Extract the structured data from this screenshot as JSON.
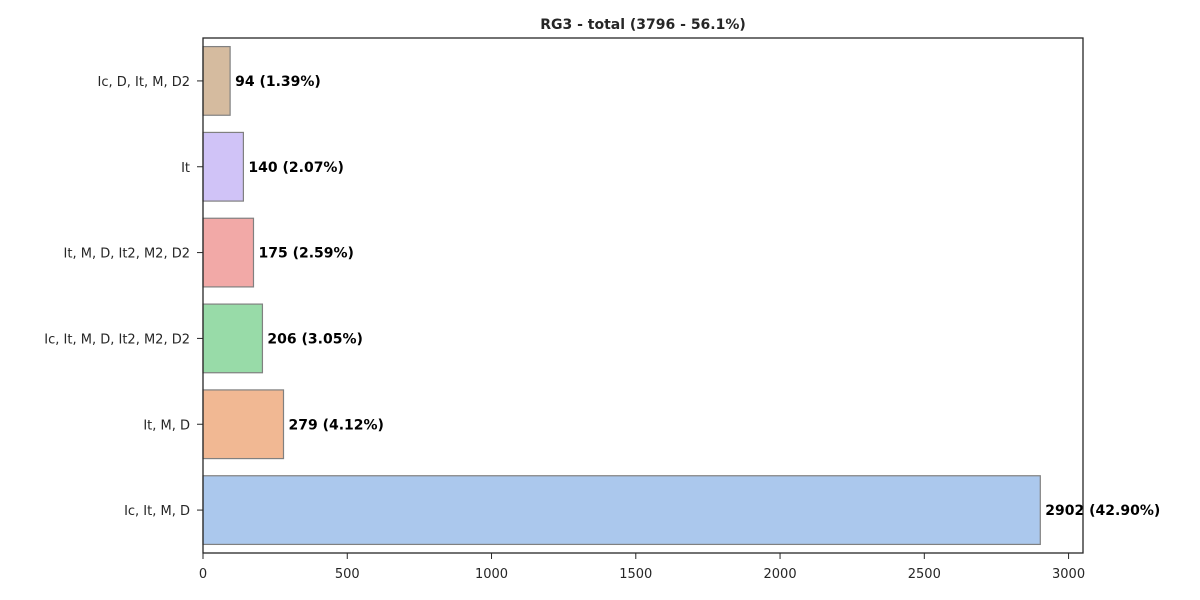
{
  "chart_data": {
    "type": "bar",
    "orientation": "horizontal",
    "title": "RG3 - total (3796 - 56.1%)",
    "xlabel": "",
    "ylabel": "",
    "categories": [
      "Ic, D, It, M, D2",
      "It",
      "It, M, D, It2, M2, D2",
      "Ic, It, M, D, It2, M2, D2",
      "It, M, D",
      "Ic, It, M, D"
    ],
    "values": [
      94,
      140,
      175,
      206,
      279,
      2902
    ],
    "data_labels": [
      "94 (1.39%)",
      "140 (2.07%)",
      "175 (2.59%)",
      "206 (3.05%)",
      "279 (4.12%)",
      "2902 (42.90%)"
    ],
    "colors": [
      "#d5bb9f",
      "#d0c3f7",
      "#f2a9a7",
      "#98dba8",
      "#f1b893",
      "#abc8ed"
    ],
    "xlim": [
      0,
      3050
    ],
    "xticks": [
      0,
      500,
      1000,
      1500,
      2000,
      2500,
      3000
    ],
    "xtick_labels": [
      "0",
      "500",
      "1000",
      "1500",
      "2000",
      "2500",
      "3000"
    ],
    "grid": false,
    "legend": "none"
  }
}
